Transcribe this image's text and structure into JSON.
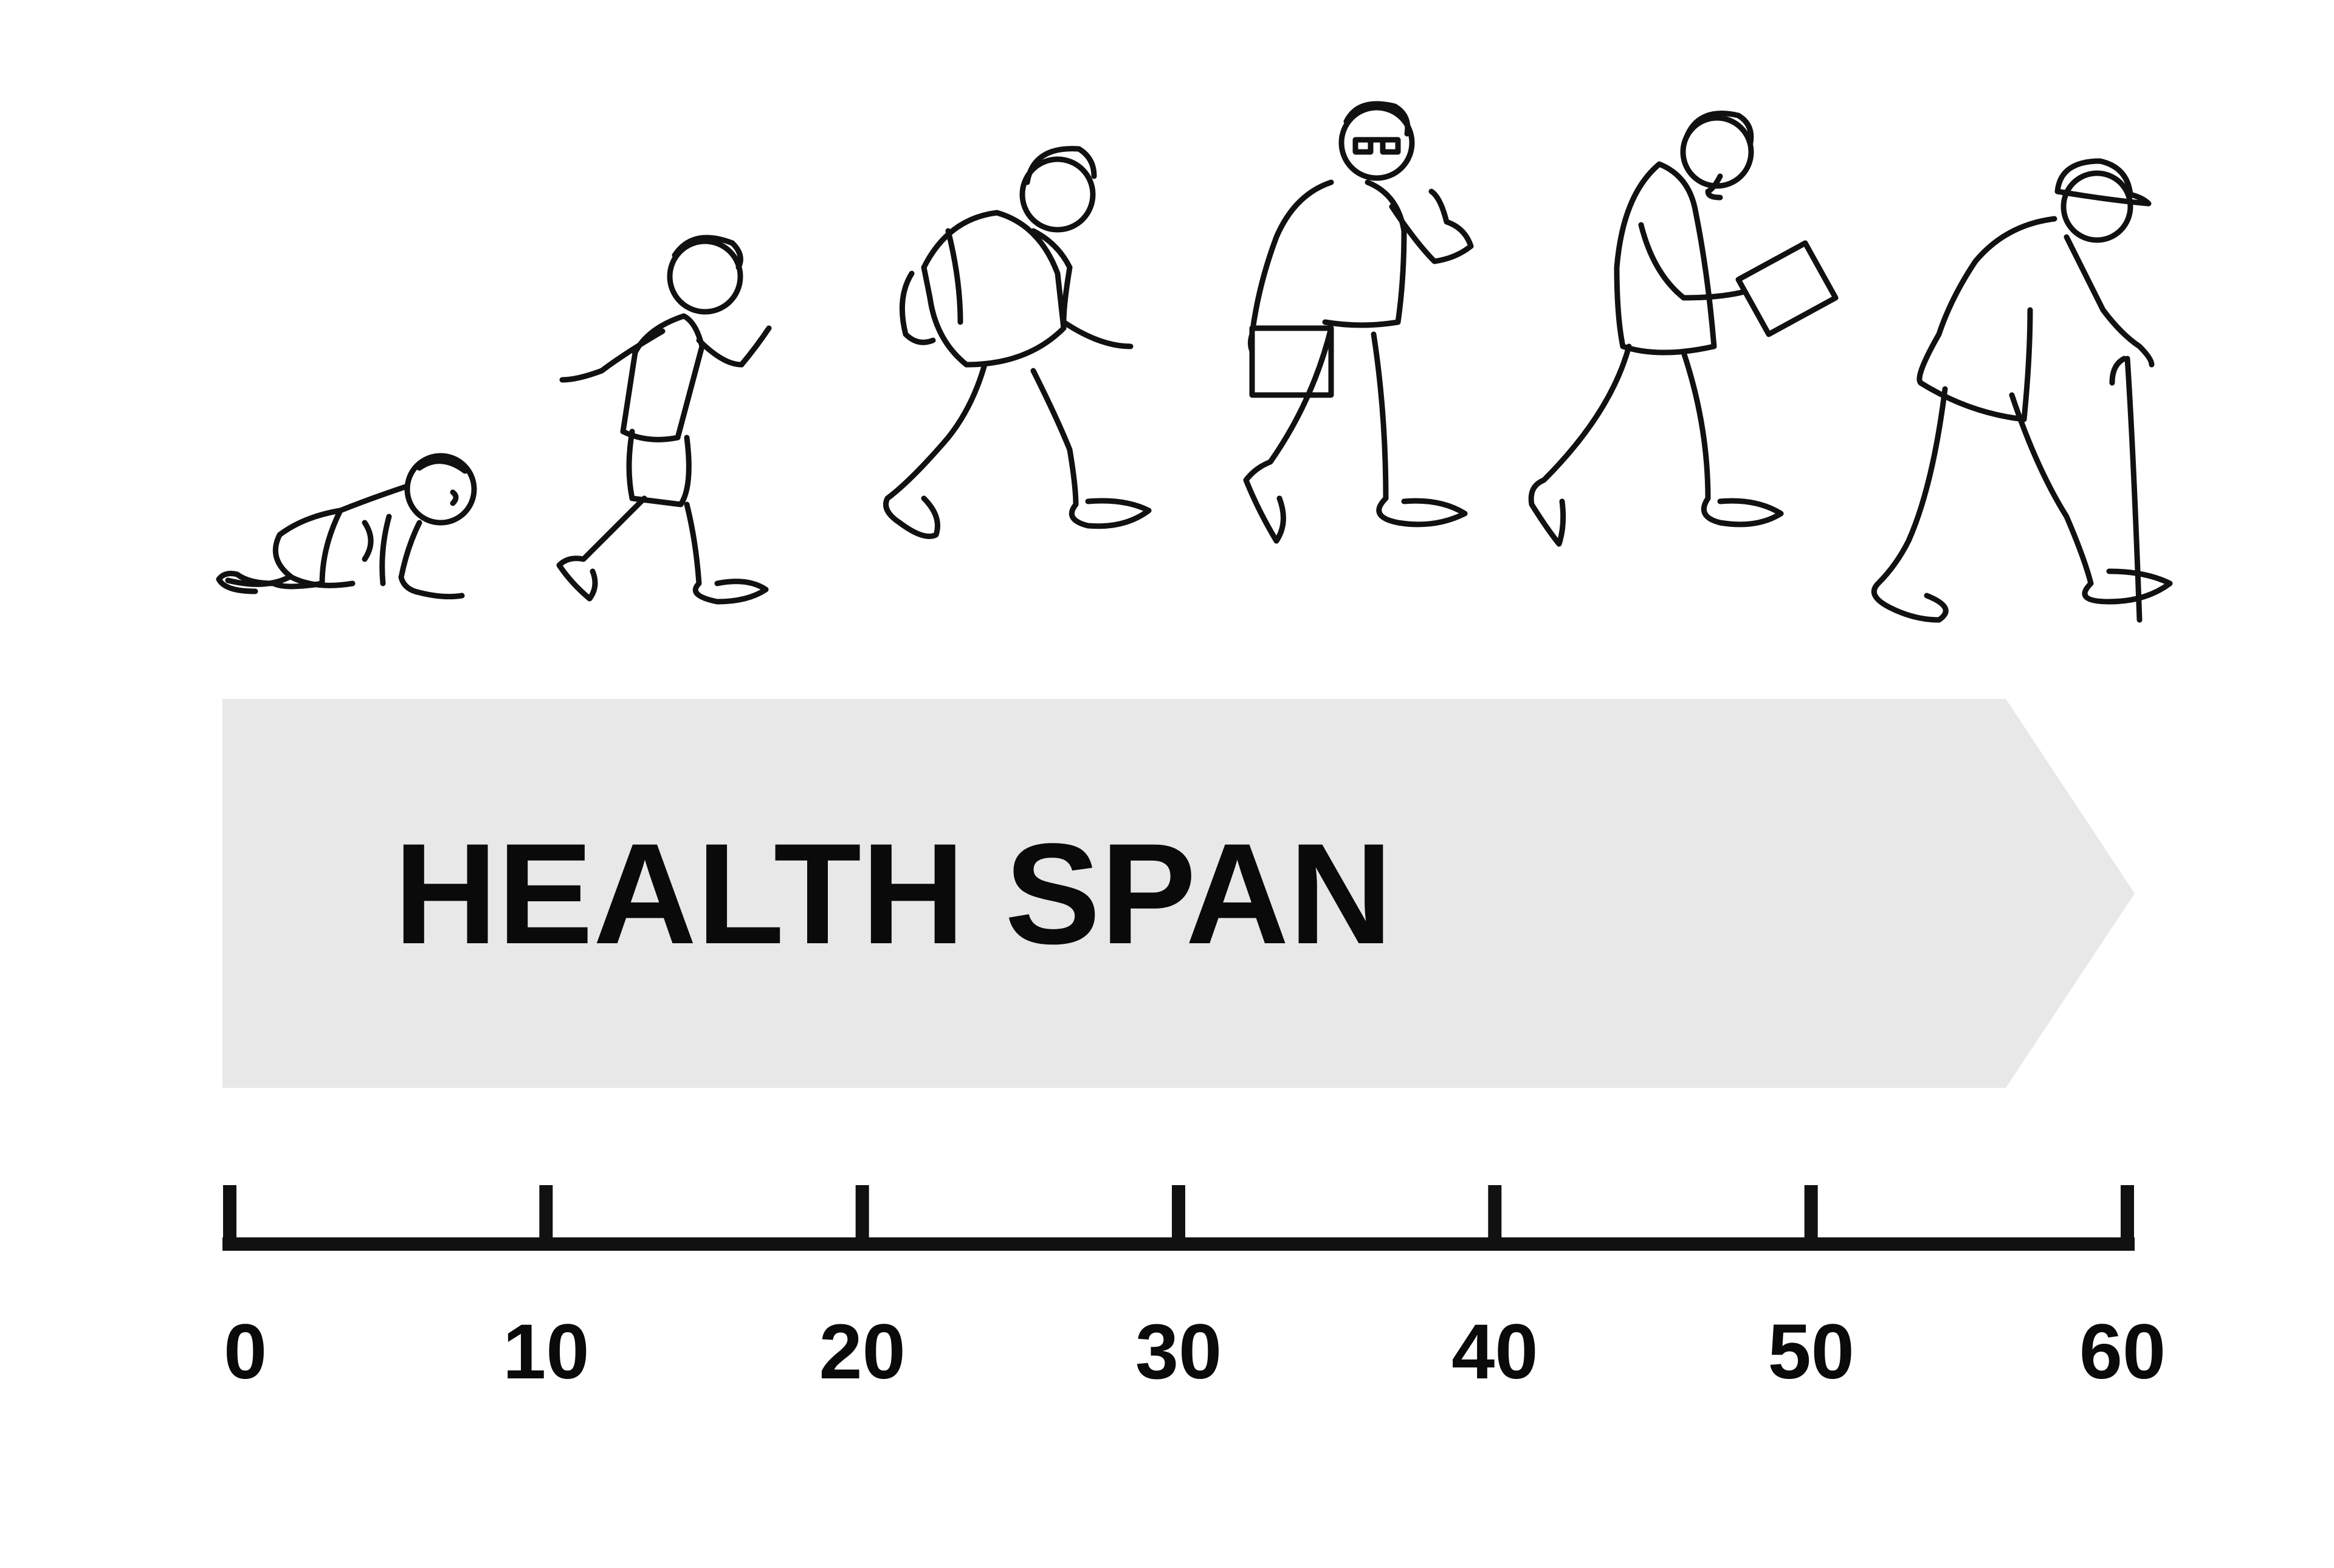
{
  "banner": {
    "label": "HEALTH SPAN",
    "fill_color": "#e8e8e8",
    "text_color": "#0a0a0a"
  },
  "axis": {
    "min": 0,
    "max": 60,
    "ticks": [
      {
        "value": 0,
        "label": "0"
      },
      {
        "value": 10,
        "label": "10"
      },
      {
        "value": 20,
        "label": "20"
      },
      {
        "value": 30,
        "label": "30"
      },
      {
        "value": 40,
        "label": "40"
      },
      {
        "value": 50,
        "label": "50"
      },
      {
        "value": 60,
        "label": "60"
      }
    ],
    "color": "#111111"
  },
  "figures": [
    {
      "stage": "baby",
      "icon": "crawling-baby-icon"
    },
    {
      "stage": "child",
      "icon": "running-child-icon"
    },
    {
      "stage": "teen",
      "icon": "walking-teen-backpack-icon"
    },
    {
      "stage": "adult",
      "icon": "walking-adult-thumbs-up-icon"
    },
    {
      "stage": "middle-aged",
      "icon": "reading-man-icon"
    },
    {
      "stage": "elderly",
      "icon": "elderly-man-cane-icon"
    }
  ]
}
